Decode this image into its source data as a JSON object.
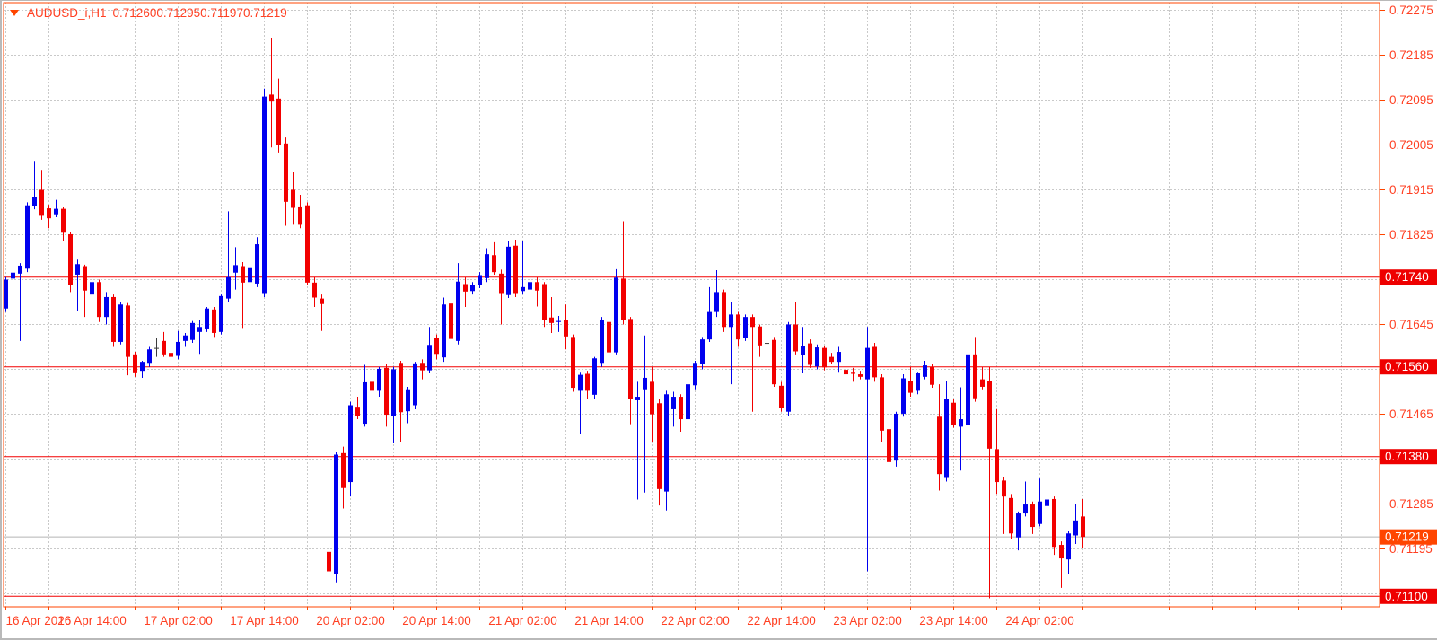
{
  "title": {
    "symbol": "AUDUSD_i,H1",
    "open": "0.71260",
    "high": "0.71295",
    "low": "0.71197",
    "close": "0.71219"
  },
  "price_axis": {
    "ticks": [
      {
        "row": 0,
        "text": "0.72275"
      },
      {
        "row": 1,
        "text": "0.72185"
      },
      {
        "row": 2,
        "text": "0.72095"
      },
      {
        "row": 3,
        "text": "0.72005"
      },
      {
        "row": 4,
        "text": "0.71915"
      },
      {
        "row": 5,
        "text": "0.71825"
      },
      {
        "row": 7,
        "text": "0.71645"
      },
      {
        "row": 9,
        "text": "0.71465"
      },
      {
        "row": 11,
        "text": "0.71285"
      },
      {
        "row": 12,
        "text": "0.71195"
      }
    ],
    "boxed_labels": [
      {
        "price": 0.7174,
        "text": "0.71740",
        "kind": "hline"
      },
      {
        "price": 0.7156,
        "text": "0.71560",
        "kind": "hline"
      },
      {
        "price": 0.7138,
        "text": "0.71380",
        "kind": "hline"
      },
      {
        "price": 0.711,
        "text": "0.71100",
        "kind": "hline"
      },
      {
        "price": 0.71219,
        "text": "0.71219",
        "kind": "bid"
      }
    ]
  },
  "chart_data": {
    "type": "candlestick",
    "title": "AUDUSD_i,H1",
    "symbol": "AUDUSD_i",
    "timeframe": "H1",
    "last_ohlc": {
      "open": 0.7126,
      "high": 0.71295,
      "low": 0.71197,
      "close": 0.71219
    },
    "price_axis": {
      "top": 0.72275,
      "step": 0.0009,
      "rows": 14
    },
    "hlines": [
      0.7174,
      0.7156,
      0.7138,
      0.711
    ],
    "bid_price": 0.71219,
    "legend_position": "none",
    "grid": true,
    "colors": {
      "bull": "#0000ee",
      "bear": "#f20000",
      "doji": "#3c3c3c",
      "grid": "#c9c9c9",
      "frame": "#ff4500",
      "axis_text": "#ff4023",
      "hline": "#f20000",
      "bid_line": "#b5b5b5",
      "hline_label_bg": "#ee0000",
      "bid_label_bg": "#ff4500",
      "label_text": "#ffffff"
    },
    "time_labels": [
      "16 Apr 2026",
      "16 Apr 14:00",
      "17 Apr 02:00",
      "17 Apr 14:00",
      "20 Apr 02:00",
      "20 Apr 14:00",
      "21 Apr 02:00",
      "21 Apr 14:00",
      "22 Apr 02:00",
      "22 Apr 14:00",
      "23 Apr 02:00",
      "23 Apr 14:00",
      "24 Apr 02:00"
    ],
    "candles_scale": 100000,
    "candles": [
      [
        71677,
        71740,
        71670,
        71735
      ],
      [
        71737,
        71755,
        71696,
        71749
      ],
      [
        71747,
        71768,
        71612,
        71763
      ],
      [
        71757,
        71890,
        71750,
        71884
      ],
      [
        71882,
        71973,
        71876,
        71900
      ],
      [
        71915,
        71955,
        71855,
        71863
      ],
      [
        71878,
        71885,
        71838,
        71858
      ],
      [
        71866,
        71895,
        71860,
        71877
      ],
      [
        71877,
        71880,
        71812,
        71829
      ],
      [
        71826,
        71830,
        71710,
        71724
      ],
      [
        71745,
        71775,
        71672,
        71766
      ],
      [
        71762,
        71765,
        71660,
        71713
      ],
      [
        71705,
        71738,
        71700,
        71730
      ],
      [
        71730,
        71735,
        71650,
        71660
      ],
      [
        71660,
        71710,
        71645,
        71700
      ],
      [
        71700,
        71705,
        71600,
        71610
      ],
      [
        71610,
        71690,
        71605,
        71685
      ],
      [
        71683,
        71688,
        71543,
        71580
      ],
      [
        71585,
        71590,
        71540,
        71549
      ],
      [
        71552,
        71572,
        71538,
        71570
      ],
      [
        71568,
        71600,
        71560,
        71595
      ],
      [
        71598,
        71618,
        71580,
        71598
      ],
      [
        71612,
        71630,
        71580,
        71585
      ],
      [
        71588,
        71600,
        71540,
        71580
      ],
      [
        71582,
        71632,
        71575,
        71610
      ],
      [
        71612,
        71628,
        71600,
        71623
      ],
      [
        71614,
        71652,
        71608,
        71648
      ],
      [
        71630,
        71655,
        71586,
        71640
      ],
      [
        71637,
        71680,
        71630,
        71677
      ],
      [
        71675,
        71680,
        71620,
        71628
      ],
      [
        71630,
        71705,
        71625,
        71702
      ],
      [
        71697,
        71872,
        71690,
        71740
      ],
      [
        71749,
        71800,
        71715,
        71764
      ],
      [
        71762,
        71770,
        71638,
        71729
      ],
      [
        71730,
        71762,
        71700,
        71758
      ],
      [
        71727,
        71820,
        71720,
        71806
      ],
      [
        71708,
        72118,
        71700,
        72102
      ],
      [
        72106,
        72220,
        72000,
        72092
      ],
      [
        72098,
        72138,
        71990,
        72005
      ],
      [
        72008,
        72020,
        71843,
        71891
      ],
      [
        71915,
        71950,
        71845,
        71879
      ],
      [
        71880,
        71905,
        71838,
        71845
      ],
      [
        71884,
        71890,
        71725,
        71729
      ],
      [
        71729,
        71740,
        71680,
        71699
      ],
      [
        71697,
        71705,
        71632,
        71686
      ],
      [
        71189,
        71297,
        71132,
        71150
      ],
      [
        71145,
        71390,
        71128,
        71384
      ],
      [
        71387,
        71400,
        71276,
        71317
      ],
      [
        71329,
        71490,
        71300,
        71483
      ],
      [
        71480,
        71500,
        71455,
        71462
      ],
      [
        71446,
        71564,
        71440,
        71529
      ],
      [
        71530,
        71570,
        71480,
        71512
      ],
      [
        71512,
        71560,
        71500,
        71556
      ],
      [
        71558,
        71565,
        71440,
        71464
      ],
      [
        71462,
        71560,
        71407,
        71555
      ],
      [
        71568,
        71572,
        71410,
        71469
      ],
      [
        71471,
        71520,
        71447,
        71515
      ],
      [
        71483,
        71570,
        71475,
        71567
      ],
      [
        71568,
        71575,
        71535,
        71553
      ],
      [
        71553,
        71640,
        71548,
        71604
      ],
      [
        71618,
        71625,
        71575,
        71586
      ],
      [
        71579,
        71699,
        71570,
        71685
      ],
      [
        71687,
        71695,
        71610,
        71616
      ],
      [
        71612,
        71768,
        71605,
        71731
      ],
      [
        71726,
        71740,
        71680,
        71711
      ],
      [
        71712,
        71730,
        71705,
        71725
      ],
      [
        71724,
        71750,
        71718,
        71744
      ],
      [
        71738,
        71798,
        71730,
        71786
      ],
      [
        71784,
        71810,
        71745,
        71750
      ],
      [
        71747,
        71755,
        71645,
        71708
      ],
      [
        71704,
        71812,
        71698,
        71801
      ],
      [
        71803,
        71815,
        71700,
        71708
      ],
      [
        71712,
        71813,
        71705,
        71720
      ],
      [
        71715,
        71770,
        71710,
        71730
      ],
      [
        71730,
        71740,
        71681,
        71713
      ],
      [
        71726,
        71730,
        71640,
        71654
      ],
      [
        71659,
        71700,
        71628,
        71648
      ],
      [
        71650,
        71662,
        71630,
        71652
      ],
      [
        71654,
        71685,
        71595,
        71621
      ],
      [
        71620,
        71625,
        71510,
        71518
      ],
      [
        71512,
        71550,
        71426,
        71544
      ],
      [
        71546,
        71552,
        71495,
        71512
      ],
      [
        71504,
        71580,
        71496,
        71577
      ],
      [
        71568,
        71660,
        71560,
        71654
      ],
      [
        71650,
        71658,
        71432,
        71589
      ],
      [
        71589,
        71756,
        71585,
        71739
      ],
      [
        71737,
        71852,
        71645,
        71654
      ],
      [
        71656,
        71660,
        71445,
        71495
      ],
      [
        71493,
        71530,
        71294,
        71500
      ],
      [
        71515,
        71623,
        71308,
        71538
      ],
      [
        71530,
        71560,
        71410,
        71465
      ],
      [
        71487,
        71495,
        71282,
        71315
      ],
      [
        71310,
        71512,
        71272,
        71505
      ],
      [
        71475,
        71510,
        71440,
        71500
      ],
      [
        71500,
        71505,
        71430,
        71455
      ],
      [
        71455,
        71560,
        71450,
        71525
      ],
      [
        71523,
        71572,
        71515,
        71568
      ],
      [
        71565,
        71620,
        71555,
        71615
      ],
      [
        71615,
        71720,
        71610,
        71670
      ],
      [
        71670,
        71754,
        71660,
        71710
      ],
      [
        71710,
        71715,
        71630,
        71640
      ],
      [
        71640,
        71690,
        71525,
        71665
      ],
      [
        71665,
        71670,
        71600,
        71615
      ],
      [
        71618,
        71665,
        71612,
        71660
      ],
      [
        71660,
        71665,
        71470,
        71640
      ],
      [
        71641,
        71645,
        71580,
        71603
      ],
      [
        71608,
        71638,
        71572,
        71608
      ],
      [
        71614,
        71620,
        71520,
        71525
      ],
      [
        71522,
        71530,
        71470,
        71477
      ],
      [
        71470,
        71650,
        71462,
        71645
      ],
      [
        71645,
        71690,
        71585,
        71591
      ],
      [
        71584,
        71640,
        71548,
        71601
      ],
      [
        71607,
        71615,
        71558,
        71564
      ],
      [
        71561,
        71605,
        71555,
        71599
      ],
      [
        71598,
        71602,
        71553,
        71559
      ],
      [
        71580,
        71588,
        71565,
        71570
      ],
      [
        71570,
        71600,
        71550,
        71590
      ],
      [
        71554,
        71560,
        71477,
        71545
      ],
      [
        71550,
        71558,
        71530,
        71546
      ],
      [
        71545,
        71552,
        71535,
        71540
      ],
      [
        71535,
        71640,
        71150,
        71598
      ],
      [
        71600,
        71608,
        71530,
        71539
      ],
      [
        71539,
        71545,
        71410,
        71432
      ],
      [
        71435,
        71440,
        71340,
        71369
      ],
      [
        71372,
        71470,
        71360,
        71466
      ],
      [
        71466,
        71545,
        71460,
        71537
      ],
      [
        71532,
        71560,
        71500,
        71508
      ],
      [
        71512,
        71550,
        71505,
        71547
      ],
      [
        71540,
        71572,
        71535,
        71563
      ],
      [
        71560,
        71565,
        71518,
        71524
      ],
      [
        71460,
        71525,
        71312,
        71345
      ],
      [
        71339,
        71531,
        71330,
        71495
      ],
      [
        71488,
        71495,
        71438,
        71443
      ],
      [
        71440,
        71519,
        71352,
        71455
      ],
      [
        71444,
        71622,
        71440,
        71585
      ],
      [
        71585,
        71620,
        71490,
        71497
      ],
      [
        71535,
        71560,
        71515,
        71520
      ],
      [
        71531,
        71560,
        71096,
        71396
      ],
      [
        71395,
        71475,
        71305,
        71329
      ],
      [
        71332,
        71340,
        71225,
        71300
      ],
      [
        71297,
        71305,
        71215,
        71226
      ],
      [
        71218,
        71270,
        71192,
        71266
      ],
      [
        71266,
        71330,
        71260,
        71284
      ],
      [
        71284,
        71290,
        71225,
        71239
      ],
      [
        71245,
        71336,
        71240,
        71290
      ],
      [
        71281,
        71343,
        71275,
        71294
      ],
      [
        71295,
        71300,
        71183,
        71199
      ],
      [
        71203,
        71210,
        71117,
        71176
      ],
      [
        71174,
        71230,
        71144,
        71226
      ],
      [
        71222,
        71285,
        71205,
        71252
      ],
      [
        71260,
        71295,
        71197,
        71219
      ]
    ]
  }
}
